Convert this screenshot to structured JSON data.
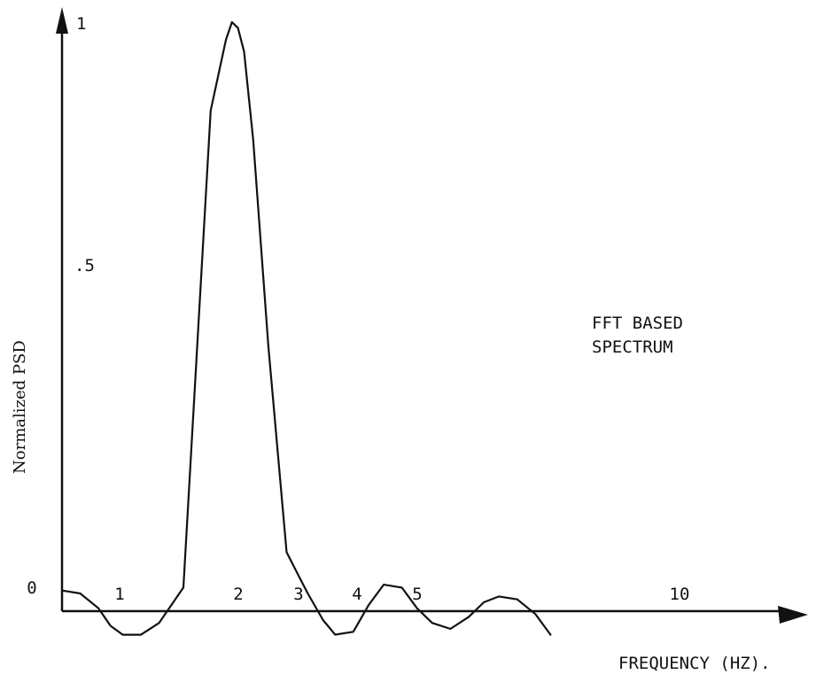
{
  "chart_data": {
    "type": "line",
    "title": "",
    "annotation": [
      "FFT BASED",
      "SPECTRUM"
    ],
    "xlabel": "FREQUENCY (HZ).",
    "ylabel": "Normalized PSD",
    "x_ticks": [
      {
        "value": 1,
        "label": "1"
      },
      {
        "value": 2,
        "label": "2"
      },
      {
        "value": 3,
        "label": "3"
      },
      {
        "value": 4,
        "label": "4"
      },
      {
        "value": 5,
        "label": "5"
      },
      {
        "value": 10,
        "label": "10"
      }
    ],
    "y_ticks": [
      {
        "value": 0,
        "label": "0"
      },
      {
        "value": 0.5,
        "label": ".5"
      },
      {
        "value": 1,
        "label": "1"
      }
    ],
    "grid": false,
    "series": [
      {
        "x": [
          0,
          0.3,
          0.6,
          0.8,
          1.0,
          1.3,
          1.6,
          2.0,
          2.2,
          2.45,
          2.7,
          2.8,
          2.9,
          3.0,
          3.15,
          3.4,
          3.7,
          3.9,
          4.05,
          4.3,
          4.5,
          4.8,
          5.05,
          5.3,
          5.6,
          5.85,
          6.1,
          6.4,
          6.7,
          6.95,
          7.2,
          7.5,
          7.8,
          8.05
        ],
        "y": [
          0.035,
          0.03,
          0.005,
          -0.025,
          -0.04,
          -0.04,
          -0.02,
          0.04,
          0.4,
          0.85,
          0.97,
          1.0,
          0.99,
          0.95,
          0.8,
          0.45,
          0.1,
          0.06,
          0.03,
          -0.015,
          -0.04,
          -0.035,
          0.01,
          0.045,
          0.04,
          0.005,
          -0.02,
          -0.03,
          -0.01,
          0.015,
          0.025,
          0.02,
          -0.005,
          -0.04
        ]
      }
    ]
  }
}
